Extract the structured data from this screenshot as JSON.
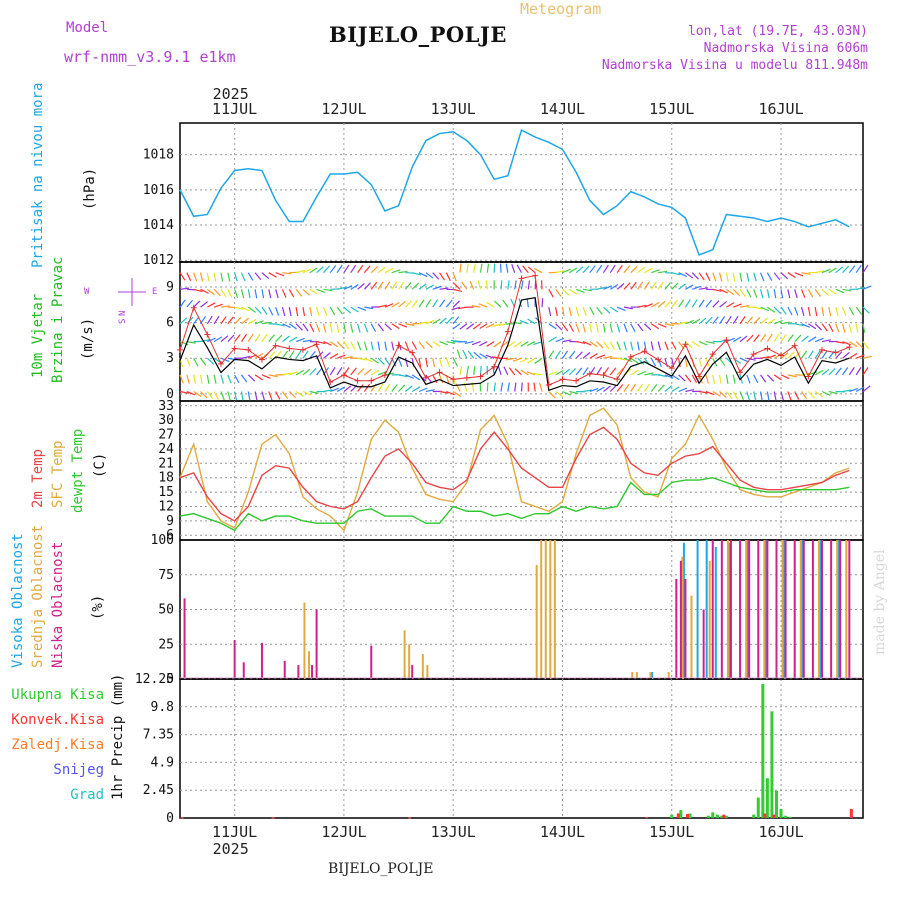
{
  "header": {
    "model_label": "Model",
    "model_name": "wrf-nmm_v3.9.1  e1km",
    "meteogram_label": "Meteogram",
    "station_title": "BIJELO_POLJE",
    "lonlat": "lon,lat (19.7E, 43.03N)",
    "elevation": "Nadmorska Visina 606m",
    "model_elevation": "Nadmorska Visina u modelu 811.948m"
  },
  "footer": {
    "station": "BIJELO_POLJE",
    "watermark": "made by Angel"
  },
  "colors": {
    "pressure": "#1ea6e6",
    "temp2m": "#e84545",
    "sfc": "#e0aa40",
    "dewpt": "#2ec82e",
    "wind_label": "#22bb22",
    "compass": "#b040d0",
    "high_cloud": "#1ea6e6",
    "mid_cloud": "#e0aa40",
    "low_cloud": "#d0208c",
    "total_precip": "#33cc33",
    "conv_precip": "#ff3333",
    "frz_precip": "#ff7f27",
    "snow": "#5555ee",
    "hail": "#22c0c0",
    "header_purple": "#b040d0",
    "header_orange": "#e8c070"
  },
  "time_axis": {
    "year": "2025",
    "days": [
      "11JUL",
      "12JUL",
      "13JUL",
      "14JUL",
      "15JUL",
      "16JUL"
    ]
  },
  "panels": {
    "pressure": {
      "label1": "Pritisak na nivou mora",
      "unit": "(hPa)",
      "ticks": [
        "1012",
        "1014",
        "1016",
        "1018"
      ]
    },
    "wind": {
      "label1": "10m Vjetar",
      "label2": "Brzina i Pravac",
      "unit": "(m/s)",
      "ticks": [
        "0",
        "3",
        "6",
        "9"
      ],
      "compass": [
        "N",
        "W",
        "E",
        "S"
      ]
    },
    "temp": {
      "label1": "2m Temp",
      "label2": "SFC Temp",
      "label3": "dewpt Temp",
      "unit": "(C)",
      "ticks": [
        "6",
        "9",
        "12",
        "15",
        "18",
        "21",
        "24",
        "27",
        "30",
        "33"
      ]
    },
    "cloud": {
      "label1": "Visoka Oblacnost",
      "label2": "Srednja Oblacnost",
      "label3": "Niska Oblacnost",
      "unit": "(%)",
      "ticks": [
        "0",
        "25",
        "50",
        "75",
        "100"
      ]
    },
    "precip": {
      "legend": [
        "Ukupna Kisa",
        "Konvek.Kisa",
        "Zaledj.Kisa",
        "Snijeg",
        "Grad"
      ],
      "ylabel": "1hr Precip (mm)",
      "ticks": [
        "0",
        "2.45",
        "4.9",
        "7.35",
        "9.8",
        "12.25"
      ]
    }
  },
  "chart_data": [
    {
      "type": "line",
      "title": "Pritisak na nivou mora",
      "ylabel": "(hPa)",
      "ylim": [
        1011.9,
        1019.8
      ],
      "grid": true,
      "x_unit": "hours since 10JUL 12UTC",
      "series": [
        {
          "name": "Pritisak na nivou mora",
          "x": [
            0,
            3,
            6,
            9,
            12,
            15,
            18,
            21,
            24,
            27,
            30,
            33,
            36,
            39,
            42,
            45,
            48,
            51,
            54,
            57,
            60,
            63,
            66,
            69,
            72,
            75,
            78,
            81,
            84,
            87,
            90,
            93,
            96,
            99,
            102,
            105,
            108,
            111,
            114,
            117,
            120,
            123,
            126,
            129,
            132,
            135,
            138,
            141,
            144,
            147
          ],
          "values": [
            1016.0,
            1014.5,
            1014.6,
            1016.1,
            1017.1,
            1017.2,
            1017.1,
            1015.4,
            1014.2,
            1014.2,
            1015.6,
            1016.9,
            1016.9,
            1017.0,
            1016.3,
            1014.8,
            1015.1,
            1017.3,
            1018.8,
            1019.2,
            1019.3,
            1018.8,
            1018.0,
            1016.6,
            1016.8,
            1019.4,
            1019.0,
            1018.7,
            1018.3,
            1017.0,
            1015.4,
            1014.6,
            1015.1,
            1015.9,
            1015.6,
            1015.2,
            1015.0,
            1014.4,
            1012.3,
            1012.6,
            1014.6,
            1014.5,
            1014.4,
            1014.2,
            1014.4,
            1014.2,
            1013.9,
            1014.1,
            1014.3,
            1013.9
          ]
        }
      ]
    },
    {
      "type": "line",
      "title": "10m Vjetar Brzina i Pravac",
      "ylabel": "(m/s)",
      "ylim": [
        -0.6,
        11.1
      ],
      "grid": true,
      "x_unit": "hours since 10JUL 12UTC",
      "series": [
        {
          "name": "10m Vjetar",
          "x": [
            0,
            3,
            6,
            9,
            12,
            15,
            18,
            21,
            24,
            27,
            30,
            33,
            36,
            39,
            42,
            45,
            48,
            51,
            54,
            57,
            60,
            63,
            66,
            69,
            72,
            75,
            78,
            81,
            84,
            87,
            90,
            93,
            96,
            99,
            102,
            105,
            108,
            111,
            114,
            117,
            120,
            123,
            126,
            129,
            132,
            135,
            138,
            141,
            144,
            147
          ],
          "values": [
            2.8,
            5.8,
            3.9,
            1.8,
            2.9,
            2.8,
            2.1,
            3.1,
            2.9,
            2.8,
            3.2,
            0.5,
            1.0,
            0.6,
            0.6,
            1.0,
            3.1,
            2.6,
            0.8,
            1.2,
            0.7,
            0.8,
            0.9,
            1.6,
            4.1,
            7.9,
            8.1,
            0.3,
            0.7,
            0.6,
            1.1,
            1.0,
            0.7,
            2.3,
            2.7,
            2.1,
            1.5,
            3.2,
            0.9,
            2.5,
            3.5,
            1.2,
            2.5,
            2.9,
            2.4,
            3.1,
            0.9,
            2.8,
            2.6,
            3.0
          ]
        }
      ]
    },
    {
      "type": "line",
      "title": "Temperatura",
      "ylabel": "(C)",
      "ylim": [
        5,
        34
      ],
      "grid": true,
      "x_unit": "hours since 10JUL 12UTC",
      "x": [
        0,
        3,
        6,
        9,
        12,
        15,
        18,
        21,
        24,
        27,
        30,
        33,
        36,
        39,
        42,
        45,
        48,
        51,
        54,
        57,
        60,
        63,
        66,
        69,
        72,
        75,
        78,
        81,
        84,
        87,
        90,
        93,
        96,
        99,
        102,
        105,
        108,
        111,
        114,
        117,
        120,
        123,
        126,
        129,
        132,
        135,
        138,
        141,
        144,
        147
      ],
      "series": [
        {
          "name": "2m Temp",
          "values": [
            18.0,
            19.0,
            14.0,
            10.5,
            9.0,
            12.0,
            18.5,
            20.5,
            20.0,
            16.0,
            13.0,
            12.0,
            11.5,
            13.0,
            18.0,
            22.5,
            24.0,
            21.0,
            17.0,
            16.0,
            15.5,
            17.5,
            24.0,
            27.5,
            24.0,
            20.0,
            18.0,
            16.0,
            16.0,
            22.0,
            27.0,
            28.5,
            26.0,
            21.0,
            19.0,
            18.5,
            21.0,
            22.5,
            23.0,
            24.5,
            21.0,
            17.5,
            16.0,
            15.5,
            15.5,
            16.0,
            16.5,
            17.0,
            18.5,
            19.5
          ]
        },
        {
          "name": "SFC Temp",
          "values": [
            18.0,
            25.0,
            13.0,
            9.0,
            7.5,
            15.0,
            25.0,
            27.0,
            23.0,
            14.0,
            11.5,
            10.0,
            7.0,
            15.0,
            26.0,
            30.0,
            27.5,
            20.0,
            14.5,
            13.5,
            13.0,
            17.0,
            28.0,
            31.0,
            25.0,
            13.0,
            12.0,
            11.0,
            13.0,
            23.0,
            31.0,
            32.5,
            29.0,
            18.0,
            15.0,
            14.0,
            22.0,
            25.0,
            31.0,
            26.0,
            20.0,
            15.5,
            14.5,
            14.0,
            14.0,
            15.0,
            16.0,
            17.0,
            19.0,
            20.0
          ]
        },
        {
          "name": "dewpt Temp",
          "values": [
            10.0,
            10.5,
            9.5,
            8.5,
            7.0,
            10.5,
            9.0,
            10.0,
            10.0,
            9.0,
            8.5,
            8.5,
            8.5,
            11.0,
            11.5,
            10.0,
            10.0,
            10.0,
            8.5,
            8.5,
            12.0,
            11.0,
            11.0,
            10.0,
            10.5,
            9.5,
            10.5,
            10.5,
            12.0,
            11.0,
            12.0,
            11.5,
            12.0,
            17.0,
            14.5,
            14.5,
            17.0,
            17.5,
            17.5,
            18.0,
            17.0,
            16.0,
            15.5,
            15.0,
            15.0,
            15.5,
            15.5,
            15.5,
            15.5,
            16.0
          ]
        }
      ]
    },
    {
      "type": "bar",
      "title": "Oblacnost",
      "ylabel": "(%)",
      "ylim": [
        0,
        100
      ],
      "grid": true,
      "x_unit": "hours since 10JUL 12UTC",
      "series": [
        {
          "name": "Niska Oblacnost",
          "x": [
            1,
            12,
            14,
            18,
            23,
            26,
            29,
            30,
            36,
            42,
            51,
            61,
            62,
            71,
            109,
            110,
            111,
            115,
            117,
            119,
            121,
            123,
            125,
            127,
            129,
            131,
            133,
            135,
            137,
            139,
            141,
            143,
            145,
            147
          ],
          "values": [
            58,
            28,
            12,
            26,
            13,
            10,
            10,
            50,
            0,
            24,
            10,
            0,
            0,
            0,
            72,
            85,
            72,
            50,
            100,
            100,
            100,
            100,
            100,
            100,
            100,
            100,
            100,
            100,
            100,
            100,
            100,
            100,
            100,
            100
          ]
        },
        {
          "name": "Srednja Oblacnost",
          "x": [
            27,
            28,
            49,
            50,
            53,
            54,
            78,
            79,
            80,
            81,
            82,
            99,
            100,
            103,
            107,
            110,
            112,
            116,
            120,
            124,
            128,
            132,
            136,
            140,
            144,
            146
          ],
          "values": [
            55,
            20,
            35,
            25,
            18,
            10,
            82,
            100,
            100,
            100,
            100,
            5,
            5,
            5,
            5,
            88,
            60,
            85,
            100,
            100,
            100,
            100,
            100,
            100,
            100,
            100
          ]
        },
        {
          "name": "Visoka Oblacnost",
          "x": [
            104,
            111,
            114,
            116,
            118,
            121,
            125,
            129,
            133,
            137,
            141,
            145
          ],
          "values": [
            5,
            98,
            100,
            100,
            95,
            98,
            100,
            100,
            100,
            100,
            100,
            100
          ]
        }
      ]
    },
    {
      "type": "bar",
      "title": "1hr Precip",
      "ylabel": "1hr Precip (mm)",
      "ylim": [
        0,
        12.25
      ],
      "grid": true,
      "x_unit": "hours since 10JUL 12UTC",
      "series": [
        {
          "name": "Ukupna Kisa",
          "x": [
            108,
            110,
            112,
            116,
            117,
            118,
            119,
            120,
            126,
            127,
            128,
            129,
            130,
            131,
            132,
            133,
            134
          ],
          "values": [
            0.3,
            0.7,
            0.4,
            0.2,
            0.5,
            0.3,
            0.2,
            0.2,
            0.3,
            1.8,
            11.8,
            3.5,
            9.4,
            2.4,
            0.8,
            0.2,
            0.1
          ]
        },
        {
          "name": "Konvek.Kisa",
          "x": [
            0,
            20,
            50,
            102,
            109,
            111,
            119,
            128,
            130,
            147
          ],
          "values": [
            0.05,
            0.05,
            0.05,
            0.08,
            0.4,
            0.35,
            0.3,
            0.4,
            0.3,
            0.8
          ]
        },
        {
          "name": "Zaledj.Kisa",
          "values": []
        },
        {
          "name": "Snijeg",
          "values": []
        },
        {
          "name": "Grad",
          "values": []
        }
      ]
    }
  ]
}
